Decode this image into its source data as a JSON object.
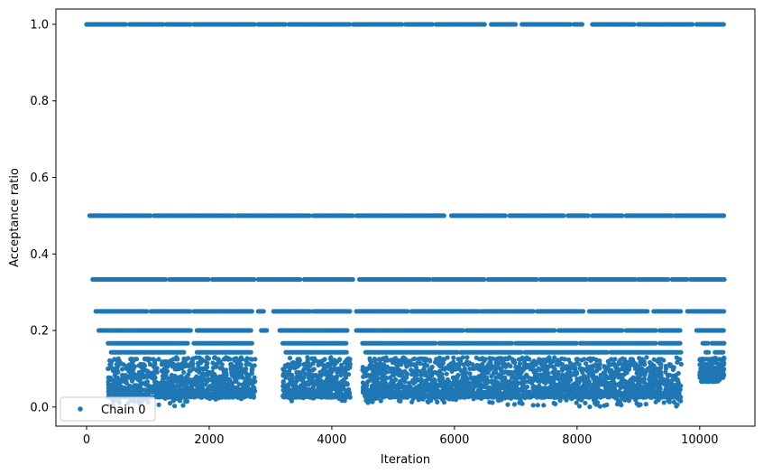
{
  "chart_data": {
    "type": "scatter",
    "xlabel": "Iteration",
    "ylabel": "Acceptance ratio",
    "xlim": [
      -500,
      10900
    ],
    "ylim": [
      -0.05,
      1.04
    ],
    "xticks": [
      0,
      2000,
      4000,
      6000,
      8000,
      10000
    ],
    "xtick_labels": [
      "0",
      "2000",
      "4000",
      "6000",
      "8000",
      "10000"
    ],
    "yticks": [
      0.0,
      0.2,
      0.4,
      0.6,
      0.8,
      1.0
    ],
    "ytick_labels": [
      "0.0",
      "0.2",
      "0.4",
      "0.6",
      "0.8",
      "1.0"
    ],
    "grid": false,
    "legend_position": "bottom-left",
    "marker_color": "#1f77b4",
    "series": [
      {
        "name": "Chain 0",
        "levels": [
          {
            "y": 1.0,
            "x_segments": [
              [
                0,
                650
              ],
              [
                700,
                1250
              ],
              [
                1300,
                1700
              ],
              [
                1750,
                2750
              ],
              [
                2800,
                3250
              ],
              [
                3300,
                4300
              ],
              [
                4350,
                5150
              ],
              [
                5200,
                5650
              ],
              [
                5700,
                6500
              ],
              [
                6600,
                7000
              ],
              [
                7100,
                7900
              ],
              [
                7950,
                8100
              ],
              [
                8250,
                8950
              ],
              [
                9000,
                9900
              ],
              [
                9950,
                10400
              ]
            ]
          },
          {
            "y": 0.5,
            "x_segments": [
              [
                50,
                1050
              ],
              [
                1100,
                2400
              ],
              [
                2450,
                3650
              ],
              [
                3700,
                4350
              ],
              [
                4400,
                5850
              ],
              [
                5950,
                6850
              ],
              [
                6900,
                7800
              ],
              [
                7850,
                8200
              ],
              [
                8250,
                8750
              ],
              [
                8800,
                9550
              ],
              [
                9600,
                10400
              ]
            ]
          },
          {
            "y": 0.3333,
            "x_segments": [
              [
                100,
                1300
              ],
              [
                1350,
                2000
              ],
              [
                2050,
                2750
              ],
              [
                2800,
                3500
              ],
              [
                3550,
                4350
              ],
              [
                4450,
                5600
              ],
              [
                5650,
                6500
              ],
              [
                6550,
                7350
              ],
              [
                7400,
                8150
              ],
              [
                8200,
                8950
              ],
              [
                9000,
                9500
              ],
              [
                9550,
                9800
              ],
              [
                9850,
                10400
              ]
            ]
          },
          {
            "y": 0.25,
            "x_segments": [
              [
                150,
                1000
              ],
              [
                1050,
                1700
              ],
              [
                1750,
                2700
              ],
              [
                2800,
                2900
              ],
              [
                3050,
                3650
              ],
              [
                3700,
                4300
              ],
              [
                4400,
                5250
              ],
              [
                5300,
                6400
              ],
              [
                6450,
                7300
              ],
              [
                7350,
                8100
              ],
              [
                8200,
                9150
              ],
              [
                9250,
                9700
              ],
              [
                9800,
                10400
              ]
            ]
          },
          {
            "y": 0.2,
            "x_segments": [
              [
                200,
                1700
              ],
              [
                1800,
                2700
              ],
              [
                2850,
                2950
              ],
              [
                3150,
                4250
              ],
              [
                4400,
                6150
              ],
              [
                6200,
                7650
              ],
              [
                7700,
                8750
              ],
              [
                8800,
                9300
              ],
              [
                9350,
                9700
              ],
              [
                9950,
                10400
              ]
            ]
          },
          {
            "y": 0.1667,
            "x_segments": [
              [
                350,
                1650
              ],
              [
                1750,
                2700
              ],
              [
                3200,
                4250
              ],
              [
                4500,
                5700
              ],
              [
                5750,
                6950
              ],
              [
                7000,
                8000
              ],
              [
                8050,
                9300
              ],
              [
                9350,
                9700
              ],
              [
                10050,
                10150
              ],
              [
                10200,
                10400
              ]
            ]
          },
          {
            "y": 0.1429,
            "x_segments": [
              [
                400,
                1600
              ],
              [
                1800,
                2700
              ],
              [
                3250,
                4250
              ],
              [
                4550,
                6050
              ],
              [
                6100,
                7100
              ],
              [
                7150,
                8500
              ],
              [
                8550,
                9700
              ],
              [
                10100,
                10150
              ],
              [
                10250,
                10400
              ]
            ]
          }
        ],
        "clusters": [
          {
            "x_range": [
              350,
              1700
            ],
            "y_range": [
              0.0,
              0.13
            ]
          },
          {
            "x_range": [
              1700,
              2750
            ],
            "y_range": [
              0.02,
              0.13
            ]
          },
          {
            "x_range": [
              3200,
              4300
            ],
            "y_range": [
              0.015,
              0.13
            ]
          },
          {
            "x_range": [
              4500,
              6800
            ],
            "y_range": [
              0.01,
              0.13
            ]
          },
          {
            "x_range": [
              6800,
              8300
            ],
            "y_range": [
              0.0,
              0.13
            ]
          },
          {
            "x_range": [
              8300,
              9700
            ],
            "y_range": [
              0.0,
              0.13
            ]
          },
          {
            "x_range": [
              10000,
              10400
            ],
            "y_range": [
              0.065,
              0.13
            ]
          }
        ]
      }
    ]
  }
}
